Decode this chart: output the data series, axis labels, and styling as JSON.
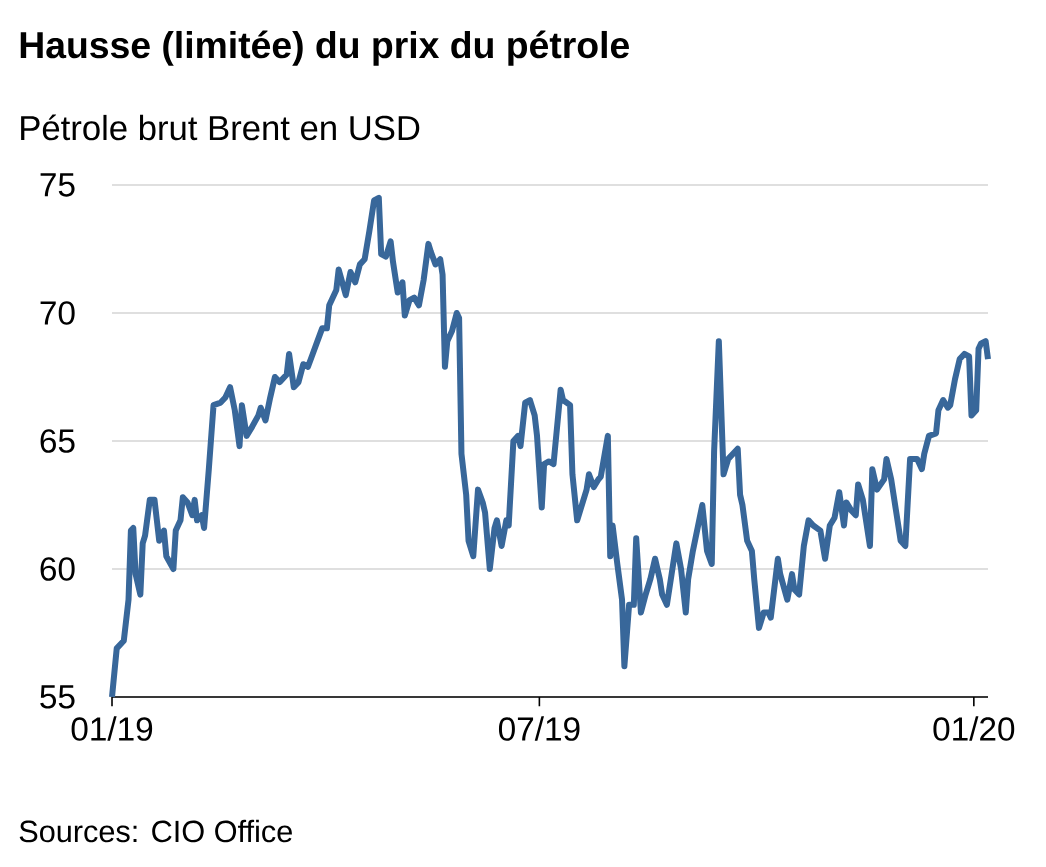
{
  "chart_data": {
    "type": "line",
    "title": "Hausse (limitée) du prix du pétrole",
    "subtitle": "Pétrole brut Brent en USD",
    "annotations": [
      "Sources: CIO Office"
    ],
    "x": [
      "2019-01-01",
      "2019-01-03",
      "2019-01-06",
      "2019-01-08",
      "2019-01-09",
      "2019-01-10",
      "2019-01-11",
      "2019-01-13",
      "2019-01-14",
      "2019-01-15",
      "2019-01-17",
      "2019-01-19",
      "2019-01-21",
      "2019-01-23",
      "2019-01-24",
      "2019-01-27",
      "2019-01-28",
      "2019-01-30",
      "2019-01-31",
      "2019-02-02",
      "2019-02-04",
      "2019-02-05",
      "2019-02-06",
      "2019-02-08",
      "2019-02-09",
      "2019-02-11",
      "2019-02-13",
      "2019-02-16",
      "2019-02-18",
      "2019-02-20",
      "2019-02-22",
      "2019-02-24",
      "2019-02-25",
      "2019-02-27",
      "2019-03-01",
      "2019-03-04",
      "2019-03-05",
      "2019-03-07",
      "2019-03-09",
      "2019-03-11",
      "2019-03-13",
      "2019-03-16",
      "2019-03-17",
      "2019-03-19",
      "2019-03-21",
      "2019-03-23",
      "2019-03-25",
      "2019-03-27",
      "2019-03-29",
      "2019-03-31",
      "2019-04-02",
      "2019-04-03",
      "2019-04-06",
      "2019-04-07",
      "2019-04-10",
      "2019-04-12",
      "2019-04-14",
      "2019-04-16",
      "2019-04-18",
      "2019-04-20",
      "2019-04-22",
      "2019-04-24",
      "2019-04-25",
      "2019-04-27",
      "2019-04-29",
      "2019-04-30",
      "2019-05-02",
      "2019-05-04",
      "2019-05-05",
      "2019-05-07",
      "2019-05-09",
      "2019-05-11",
      "2019-05-13",
      "2019-05-15",
      "2019-05-16",
      "2019-05-18",
      "2019-05-20",
      "2019-05-21",
      "2019-05-22",
      "2019-05-23",
      "2019-05-25",
      "2019-05-27",
      "2019-05-28",
      "2019-05-29",
      "2019-05-31",
      "2019-06-01",
      "2019-06-03",
      "2019-06-05",
      "2019-06-07",
      "2019-06-08",
      "2019-06-10",
      "2019-06-12",
      "2019-06-13",
      "2019-06-15",
      "2019-06-17",
      "2019-06-18",
      "2019-06-20",
      "2019-06-22",
      "2019-06-23",
      "2019-06-25",
      "2019-06-27",
      "2019-06-29",
      "2019-06-30",
      "2019-07-02",
      "2019-07-03",
      "2019-07-05",
      "2019-07-07",
      "2019-07-10",
      "2019-07-11",
      "2019-07-14",
      "2019-07-15",
      "2019-07-17",
      "2019-07-19",
      "2019-07-21",
      "2019-07-22",
      "2019-07-24",
      "2019-07-26",
      "2019-07-27",
      "2019-07-30",
      "2019-07-31",
      "2019-08-01",
      "2019-08-03",
      "2019-08-05",
      "2019-08-06",
      "2019-08-08",
      "2019-08-10",
      "2019-08-11",
      "2019-08-13",
      "2019-08-15",
      "2019-08-17",
      "2019-08-19",
      "2019-08-21",
      "2019-08-22",
      "2019-08-24",
      "2019-08-26",
      "2019-08-28",
      "2019-08-30",
      "2019-09-01",
      "2019-09-02",
      "2019-09-04",
      "2019-09-06",
      "2019-09-08",
      "2019-09-10",
      "2019-09-12",
      "2019-09-13",
      "2019-09-15",
      "2019-09-17",
      "2019-09-19",
      "2019-09-21",
      "2019-09-23",
      "2019-09-24",
      "2019-09-25",
      "2019-09-27",
      "2019-09-29",
      "2019-09-30",
      "2019-10-02",
      "2019-10-04",
      "2019-10-06",
      "2019-10-07",
      "2019-10-10",
      "2019-10-11",
      "2019-10-14",
      "2019-10-16",
      "2019-10-17",
      "2019-10-19",
      "2019-10-21",
      "2019-10-23",
      "2019-10-25",
      "2019-10-28",
      "2019-10-30",
      "2019-11-01",
      "2019-11-03",
      "2019-11-05",
      "2019-11-07",
      "2019-11-08",
      "2019-11-10",
      "2019-11-12",
      "2019-11-13",
      "2019-11-15",
      "2019-11-18",
      "2019-11-19",
      "2019-11-21",
      "2019-11-24",
      "2019-11-25",
      "2019-11-27",
      "2019-11-29",
      "2019-12-01",
      "2019-12-03",
      "2019-12-05",
      "2019-12-06",
      "2019-12-08",
      "2019-12-10",
      "2019-12-11",
      "2019-12-13",
      "2019-12-16",
      "2019-12-17",
      "2019-12-19",
      "2019-12-21",
      "2019-12-22",
      "2019-12-24",
      "2019-12-26",
      "2019-12-28",
      "2019-12-30",
      "2019-12-31",
      "2020-01-02",
      "2020-01-03",
      "2020-01-04",
      "2020-01-06",
      "2020-01-07"
    ],
    "series": [
      {
        "color": "#38679a",
        "values": [
          55.0,
          56.9,
          57.2,
          58.8,
          61.5,
          61.6,
          59.8,
          59.0,
          61.0,
          61.3,
          62.7,
          62.7,
          61.1,
          61.5,
          60.5,
          60.0,
          61.5,
          61.9,
          62.8,
          62.6,
          62.1,
          62.7,
          61.9,
          62.1,
          61.6,
          63.9,
          66.4,
          66.5,
          66.7,
          67.1,
          66.2,
          64.8,
          66.4,
          65.2,
          65.5,
          66.0,
          66.3,
          65.8,
          66.7,
          67.5,
          67.3,
          67.6,
          68.4,
          67.1,
          67.3,
          68.0,
          67.9,
          68.4,
          68.9,
          69.4,
          69.4,
          70.3,
          70.9,
          71.7,
          70.7,
          71.6,
          71.2,
          71.9,
          72.1,
          73.2,
          74.4,
          74.5,
          72.3,
          72.2,
          72.8,
          72.0,
          70.8,
          71.2,
          69.9,
          70.5,
          70.6,
          70.3,
          71.3,
          72.7,
          72.4,
          71.9,
          72.1,
          71.5,
          67.9,
          68.9,
          69.3,
          70.0,
          69.8,
          64.5,
          62.9,
          61.1,
          60.5,
          63.1,
          62.6,
          62.2,
          60.0,
          61.6,
          61.9,
          60.9,
          61.9,
          61.7,
          65.0,
          65.2,
          64.8,
          66.5,
          66.6,
          66.0,
          65.2,
          62.4,
          64.1,
          64.2,
          64.1,
          67.0,
          66.6,
          66.4,
          63.7,
          61.9,
          62.5,
          63.1,
          63.7,
          63.2,
          63.5,
          63.6,
          65.2,
          60.5,
          61.7,
          60.2,
          58.8,
          56.2,
          58.6,
          58.6,
          61.2,
          58.3,
          59.0,
          59.6,
          60.4,
          59.6,
          59.0,
          58.6,
          59.8,
          61.0,
          60.0,
          58.3,
          59.6,
          60.7,
          61.6,
          62.5,
          60.7,
          60.2,
          64.6,
          68.9,
          63.7,
          64.3,
          64.5,
          64.7,
          62.9,
          62.5,
          61.1,
          60.7,
          59.6,
          57.7,
          58.3,
          58.3,
          58.1,
          60.4,
          59.8,
          58.8,
          59.8,
          59.2,
          59.0,
          60.9,
          61.9,
          61.7,
          61.5,
          60.4,
          61.7,
          62.0,
          63.0,
          61.7,
          62.6,
          62.3,
          62.1,
          63.3,
          62.7,
          60.9,
          63.9,
          63.1,
          63.5,
          64.3,
          63.5,
          62.3,
          61.1,
          60.9,
          64.3,
          64.3,
          64.3,
          63.9,
          64.5,
          65.2,
          65.3,
          66.2,
          66.6,
          66.3,
          66.4,
          67.4,
          68.2,
          68.4,
          68.3,
          66.0,
          66.2,
          68.6,
          68.8,
          68.9,
          68.2
        ]
      }
    ],
    "xlim": [
      "2019-01-01",
      "2020-01-07"
    ],
    "xticks": [
      {
        "value": "2019-01-01",
        "label": "01/19"
      },
      {
        "value": "2019-07-01",
        "label": "07/19"
      },
      {
        "value": "2020-01-01",
        "label": "01/20"
      }
    ],
    "ylim": [
      55,
      75
    ],
    "yticks": [
      55,
      60,
      65,
      70,
      75
    ],
    "grid": "y",
    "marker": "none",
    "line_style": "solid"
  }
}
